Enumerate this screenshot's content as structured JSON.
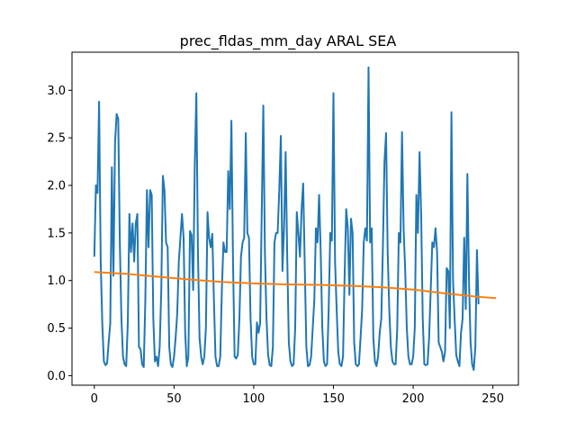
{
  "chart_data": {
    "type": "line",
    "title": "prec_fldas_mm_day ARAL SEA",
    "xlabel": "",
    "ylabel": "",
    "xlim": [
      -14,
      266
    ],
    "ylim": [
      -0.1,
      3.4
    ],
    "x_ticks": [
      0,
      50,
      100,
      150,
      200,
      250
    ],
    "y_ticks": [
      0.0,
      0.5,
      1.0,
      1.5,
      2.0,
      2.5,
      3.0
    ],
    "x_tick_labels": [
      "0",
      "50",
      "100",
      "150",
      "200",
      "250"
    ],
    "y_tick_labels": [
      "0.0",
      "0.5",
      "1.0",
      "1.5",
      "2.0",
      "2.5",
      "3.0"
    ],
    "grid": false,
    "legend": "none",
    "series": [
      {
        "color": "#1f77b4",
        "values": [
          1.25,
          2.0,
          1.92,
          2.88,
          1.2,
          0.55,
          0.15,
          0.11,
          0.13,
          0.35,
          0.55,
          2.19,
          1.05,
          2.45,
          2.75,
          2.7,
          1.4,
          0.6,
          0.2,
          0.12,
          0.1,
          0.55,
          1.7,
          1.3,
          1.6,
          1.2,
          1.6,
          1.7,
          0.3,
          0.28,
          0.12,
          0.09,
          0.8,
          1.95,
          1.35,
          1.95,
          1.9,
          0.6,
          0.15,
          0.2,
          0.1,
          0.3,
          0.9,
          2.1,
          1.95,
          1.4,
          1.35,
          0.3,
          0.12,
          0.09,
          0.2,
          0.4,
          0.65,
          1.2,
          1.45,
          1.7,
          1.45,
          0.45,
          0.1,
          0.2,
          1.52,
          1.48,
          0.9,
          2.2,
          2.97,
          1.3,
          0.4,
          0.2,
          0.12,
          0.2,
          0.5,
          1.72,
          1.45,
          1.35,
          1.49,
          0.8,
          0.2,
          0.1,
          0.1,
          0.2,
          0.9,
          1.4,
          1.3,
          1.3,
          2.15,
          1.75,
          2.68,
          1.2,
          0.2,
          0.18,
          0.22,
          0.6,
          1.25,
          1.4,
          1.45,
          2.55,
          1.5,
          1.45,
          0.6,
          0.2,
          0.12,
          0.12,
          0.56,
          0.45,
          0.55,
          1.7,
          2.84,
          1.3,
          0.6,
          0.22,
          0.11,
          0.1,
          0.3,
          1.4,
          1.5,
          1.5,
          1.95,
          2.52,
          1.1,
          1.55,
          2.35,
          1.25,
          0.35,
          0.15,
          0.1,
          0.12,
          0.5,
          1.72,
          1.5,
          1.25,
          1.75,
          2.02,
          1.15,
          0.3,
          0.1,
          0.11,
          0.2,
          0.5,
          0.8,
          1.55,
          1.4,
          1.9,
          1.3,
          0.5,
          0.15,
          0.1,
          0.12,
          0.7,
          1.5,
          1.42,
          2.97,
          1.2,
          0.7,
          0.25,
          0.12,
          0.1,
          0.2,
          1.05,
          1.75,
          1.55,
          0.85,
          1.65,
          1.5,
          0.35,
          0.12,
          0.1,
          0.12,
          0.4,
          0.7,
          1.4,
          1.55,
          1.42,
          3.24,
          1.4,
          1.55,
          0.4,
          0.15,
          0.1,
          0.2,
          0.45,
          0.6,
          1.35,
          2.25,
          2.55,
          1.3,
          0.7,
          0.3,
          0.15,
          0.12,
          0.12,
          0.5,
          1.5,
          1.4,
          2.56,
          1.55,
          1.1,
          0.5,
          0.2,
          0.12,
          0.12,
          0.2,
          0.5,
          1.9,
          1.5,
          2.35,
          1.7,
          0.6,
          0.12,
          0.11,
          0.12,
          0.4,
          0.9,
          1.4,
          1.35,
          1.55,
          1.3,
          0.35,
          0.3,
          0.25,
          0.15,
          0.25,
          1.13,
          1.1,
          0.5,
          2.77,
          1.0,
          0.6,
          0.22,
          0.15,
          0.1,
          0.45,
          0.6,
          1.45,
          0.7,
          2.12,
          1.0,
          0.35,
          0.12,
          0.06,
          0.3,
          1.32,
          0.75
        ]
      },
      {
        "color": "#ff7f0e",
        "x": [
          0,
          20,
          40,
          60,
          80,
          100,
          120,
          140,
          160,
          180,
          200,
          220,
          240,
          252
        ],
        "values": [
          1.09,
          1.07,
          1.04,
          1.01,
          0.985,
          0.97,
          0.96,
          0.955,
          0.945,
          0.93,
          0.905,
          0.865,
          0.83,
          0.815
        ]
      }
    ]
  }
}
